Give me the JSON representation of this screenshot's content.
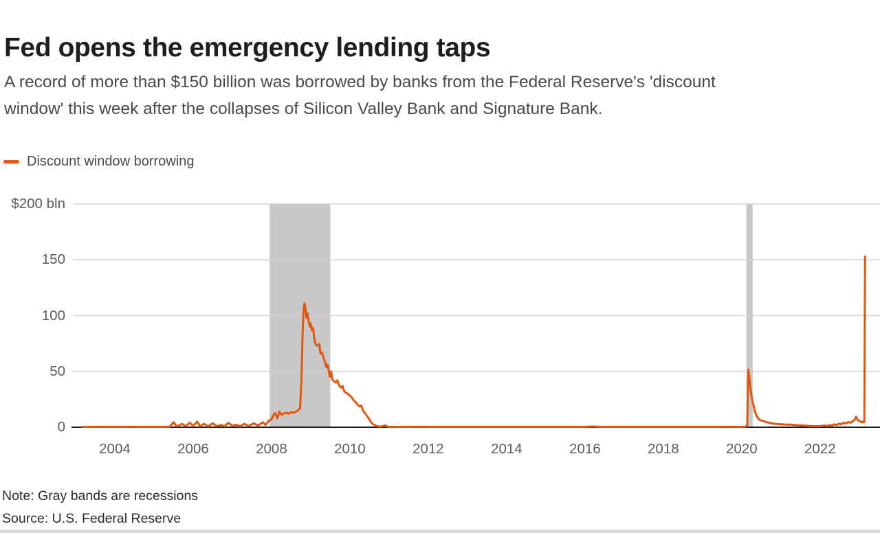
{
  "header": {
    "title": "Fed opens the emergency lending taps",
    "subtitle_lines": [
      "A record of more than $150 billion was borrowed by banks from the Federal Reserve's 'discount",
      "window' this week after the collapses of Silicon Valley Bank and Signature Bank."
    ]
  },
  "legend": {
    "label": "Discount window borrowing"
  },
  "footer": {
    "note": "Note: Gray bands are recessions",
    "source": "Source: U.S. Federal Reserve"
  },
  "colors": {
    "accent": "#e2570d",
    "recession_band": "#c8c8c8",
    "gridline": "#d2d2d2",
    "zero_axis": "#1a1a1a"
  },
  "chart_data": {
    "type": "line",
    "title": "Discount window borrowing",
    "ylabel": "$ bln",
    "x_domain": [
      2002.93,
      2023.53
    ],
    "y_domain": [
      0,
      200
    ],
    "grid": true,
    "legend_position": "top-left",
    "y_ticks": [
      {
        "label": "$200 bln",
        "value": 200
      },
      {
        "label": "150",
        "value": 150
      },
      {
        "label": "100",
        "value": 100
      },
      {
        "label": "50",
        "value": 50
      },
      {
        "label": "0",
        "value": 0
      }
    ],
    "x_ticks": [
      {
        "label": "2004",
        "year": 2004
      },
      {
        "label": "2006",
        "year": 2006
      },
      {
        "label": "2008",
        "year": 2008
      },
      {
        "label": "2010",
        "year": 2010
      },
      {
        "label": "2012",
        "year": 2012
      },
      {
        "label": "2014",
        "year": 2014
      },
      {
        "label": "2016",
        "year": 2016
      },
      {
        "label": "2018",
        "year": 2018
      },
      {
        "label": "2020",
        "year": 2020
      },
      {
        "label": "2022",
        "year": 2022
      }
    ],
    "recession_bands": [
      {
        "start": 2007.95,
        "end": 2009.5
      },
      {
        "start": 2020.12,
        "end": 2020.28
      }
    ],
    "series": [
      {
        "name": "Discount window borrowing",
        "unit": "$ bln",
        "points": [
          [
            2003.18,
            0.3
          ],
          [
            2003.4,
            0.2
          ],
          [
            2003.6,
            0.4
          ],
          [
            2003.8,
            0.2
          ],
          [
            2004.0,
            0.3
          ],
          [
            2004.2,
            0.2
          ],
          [
            2004.4,
            0.4
          ],
          [
            2004.6,
            0.3
          ],
          [
            2004.8,
            0.2
          ],
          [
            2005.0,
            0.3
          ],
          [
            2005.2,
            0.3
          ],
          [
            2005.4,
            0.5
          ],
          [
            2005.5,
            4.5
          ],
          [
            2005.58,
            0.8
          ],
          [
            2005.72,
            3.0
          ],
          [
            2005.8,
            0.9
          ],
          [
            2005.92,
            4.0
          ],
          [
            2006.0,
            1.0
          ],
          [
            2006.1,
            5.0
          ],
          [
            2006.18,
            1.0
          ],
          [
            2006.28,
            3.0
          ],
          [
            2006.38,
            0.8
          ],
          [
            2006.5,
            3.5
          ],
          [
            2006.6,
            1.0
          ],
          [
            2006.72,
            2.0
          ],
          [
            2006.8,
            0.8
          ],
          [
            2006.9,
            4.0
          ],
          [
            2007.0,
            1.2
          ],
          [
            2007.1,
            2.2
          ],
          [
            2007.2,
            0.8
          ],
          [
            2007.3,
            3.0
          ],
          [
            2007.42,
            1.2
          ],
          [
            2007.55,
            3.5
          ],
          [
            2007.65,
            1.5
          ],
          [
            2007.78,
            4.5
          ],
          [
            2007.85,
            2.0
          ],
          [
            2007.92,
            5.5
          ],
          [
            2008.0,
            7.0
          ],
          [
            2008.05,
            11.0
          ],
          [
            2008.1,
            12.5
          ],
          [
            2008.15,
            8.0
          ],
          [
            2008.2,
            14.0
          ],
          [
            2008.26,
            11.0
          ],
          [
            2008.32,
            12.5
          ],
          [
            2008.38,
            13.0
          ],
          [
            2008.44,
            12.0
          ],
          [
            2008.5,
            13.5
          ],
          [
            2008.56,
            13.0
          ],
          [
            2008.62,
            14.0
          ],
          [
            2008.68,
            15.0
          ],
          [
            2008.73,
            17.0
          ],
          [
            2008.76,
            40.0
          ],
          [
            2008.79,
            80.0
          ],
          [
            2008.81,
            100.0
          ],
          [
            2008.84,
            111.0
          ],
          [
            2008.87,
            107.0
          ],
          [
            2008.89,
            98.0
          ],
          [
            2008.92,
            102.0
          ],
          [
            2008.95,
            95.0
          ],
          [
            2008.98,
            90.0
          ],
          [
            2009.0,
            93.0
          ],
          [
            2009.03,
            87.0
          ],
          [
            2009.06,
            89.0
          ],
          [
            2009.1,
            78.0
          ],
          [
            2009.13,
            74.0
          ],
          [
            2009.18,
            73.0
          ],
          [
            2009.22,
            74.5
          ],
          [
            2009.25,
            66.0
          ],
          [
            2009.29,
            67.0
          ],
          [
            2009.33,
            62.0
          ],
          [
            2009.37,
            58.0
          ],
          [
            2009.4,
            54.0
          ],
          [
            2009.43,
            56.0
          ],
          [
            2009.46,
            51.0
          ],
          [
            2009.49,
            45.0
          ],
          [
            2009.52,
            50.0
          ],
          [
            2009.55,
            43.0
          ],
          [
            2009.6,
            41.0
          ],
          [
            2009.65,
            40.0
          ],
          [
            2009.68,
            42.0
          ],
          [
            2009.73,
            37.0
          ],
          [
            2009.78,
            35.5
          ],
          [
            2009.81,
            37.0
          ],
          [
            2009.86,
            32.0
          ],
          [
            2009.92,
            30.5
          ],
          [
            2009.98,
            29.0
          ],
          [
            2010.04,
            27.0
          ],
          [
            2010.1,
            24.0
          ],
          [
            2010.16,
            22.0
          ],
          [
            2010.2,
            20.0
          ],
          [
            2010.25,
            18.5
          ],
          [
            2010.29,
            19.5
          ],
          [
            2010.34,
            14.5
          ],
          [
            2010.4,
            12.0
          ],
          [
            2010.44,
            10.0
          ],
          [
            2010.48,
            8.0
          ],
          [
            2010.53,
            5.0
          ],
          [
            2010.58,
            3.0
          ],
          [
            2010.63,
            2.0
          ],
          [
            2010.68,
            1.0
          ],
          [
            2010.78,
            0.5
          ],
          [
            2010.9,
            1.6
          ],
          [
            2010.97,
            0.4
          ],
          [
            2011.2,
            0.3
          ],
          [
            2011.5,
            0.3
          ],
          [
            2011.8,
            0.4
          ],
          [
            2012.1,
            0.2
          ],
          [
            2012.4,
            0.3
          ],
          [
            2012.7,
            0.2
          ],
          [
            2013.0,
            0.3
          ],
          [
            2013.3,
            0.2
          ],
          [
            2013.6,
            0.3
          ],
          [
            2013.9,
            0.2
          ],
          [
            2014.2,
            0.3
          ],
          [
            2014.5,
            0.2
          ],
          [
            2014.8,
            0.3
          ],
          [
            2015.1,
            0.2
          ],
          [
            2015.4,
            0.3
          ],
          [
            2015.7,
            0.2
          ],
          [
            2016.0,
            0.3
          ],
          [
            2016.2,
            0.7
          ],
          [
            2016.4,
            0.2
          ],
          [
            2016.7,
            0.3
          ],
          [
            2017.0,
            0.2
          ],
          [
            2017.3,
            0.3
          ],
          [
            2017.6,
            0.2
          ],
          [
            2017.9,
            0.3
          ],
          [
            2018.2,
            0.2
          ],
          [
            2018.5,
            0.3
          ],
          [
            2018.8,
            0.2
          ],
          [
            2019.1,
            0.3
          ],
          [
            2019.4,
            0.3
          ],
          [
            2019.7,
            0.4
          ],
          [
            2019.95,
            0.3
          ],
          [
            2020.1,
            0.5
          ],
          [
            2020.14,
            2.0
          ],
          [
            2020.17,
            51.5
          ],
          [
            2020.2,
            43.0
          ],
          [
            2020.23,
            33.0
          ],
          [
            2020.26,
            26.0
          ],
          [
            2020.3,
            20.0
          ],
          [
            2020.33,
            15.0
          ],
          [
            2020.37,
            11.0
          ],
          [
            2020.41,
            8.5
          ],
          [
            2020.45,
            6.8
          ],
          [
            2020.5,
            6.0
          ],
          [
            2020.55,
            5.6
          ],
          [
            2020.6,
            5.0
          ],
          [
            2020.66,
            4.3
          ],
          [
            2020.72,
            3.8
          ],
          [
            2020.78,
            3.4
          ],
          [
            2020.85,
            3.1
          ],
          [
            2020.95,
            2.8
          ],
          [
            2021.05,
            2.5
          ],
          [
            2021.15,
            2.3
          ],
          [
            2021.25,
            2.4
          ],
          [
            2021.35,
            1.9
          ],
          [
            2021.5,
            1.6
          ],
          [
            2021.65,
            1.3
          ],
          [
            2021.8,
            1.0
          ],
          [
            2021.95,
            0.9
          ],
          [
            2022.05,
            1.2
          ],
          [
            2022.12,
            1.6
          ],
          [
            2022.18,
            1.0
          ],
          [
            2022.24,
            2.0
          ],
          [
            2022.3,
            1.4
          ],
          [
            2022.36,
            2.6
          ],
          [
            2022.42,
            2.0
          ],
          [
            2022.48,
            3.2
          ],
          [
            2022.54,
            2.6
          ],
          [
            2022.6,
            4.0
          ],
          [
            2022.66,
            3.4
          ],
          [
            2022.72,
            4.6
          ],
          [
            2022.78,
            4.0
          ],
          [
            2022.84,
            5.6
          ],
          [
            2022.88,
            6.5
          ],
          [
            2022.92,
            9.4
          ],
          [
            2022.96,
            6.8
          ],
          [
            2023.0,
            5.6
          ],
          [
            2023.04,
            5.0
          ],
          [
            2023.08,
            4.4
          ],
          [
            2023.11,
            5.4
          ],
          [
            2023.13,
            4.6
          ],
          [
            2023.15,
            152.9
          ]
        ]
      }
    ]
  }
}
